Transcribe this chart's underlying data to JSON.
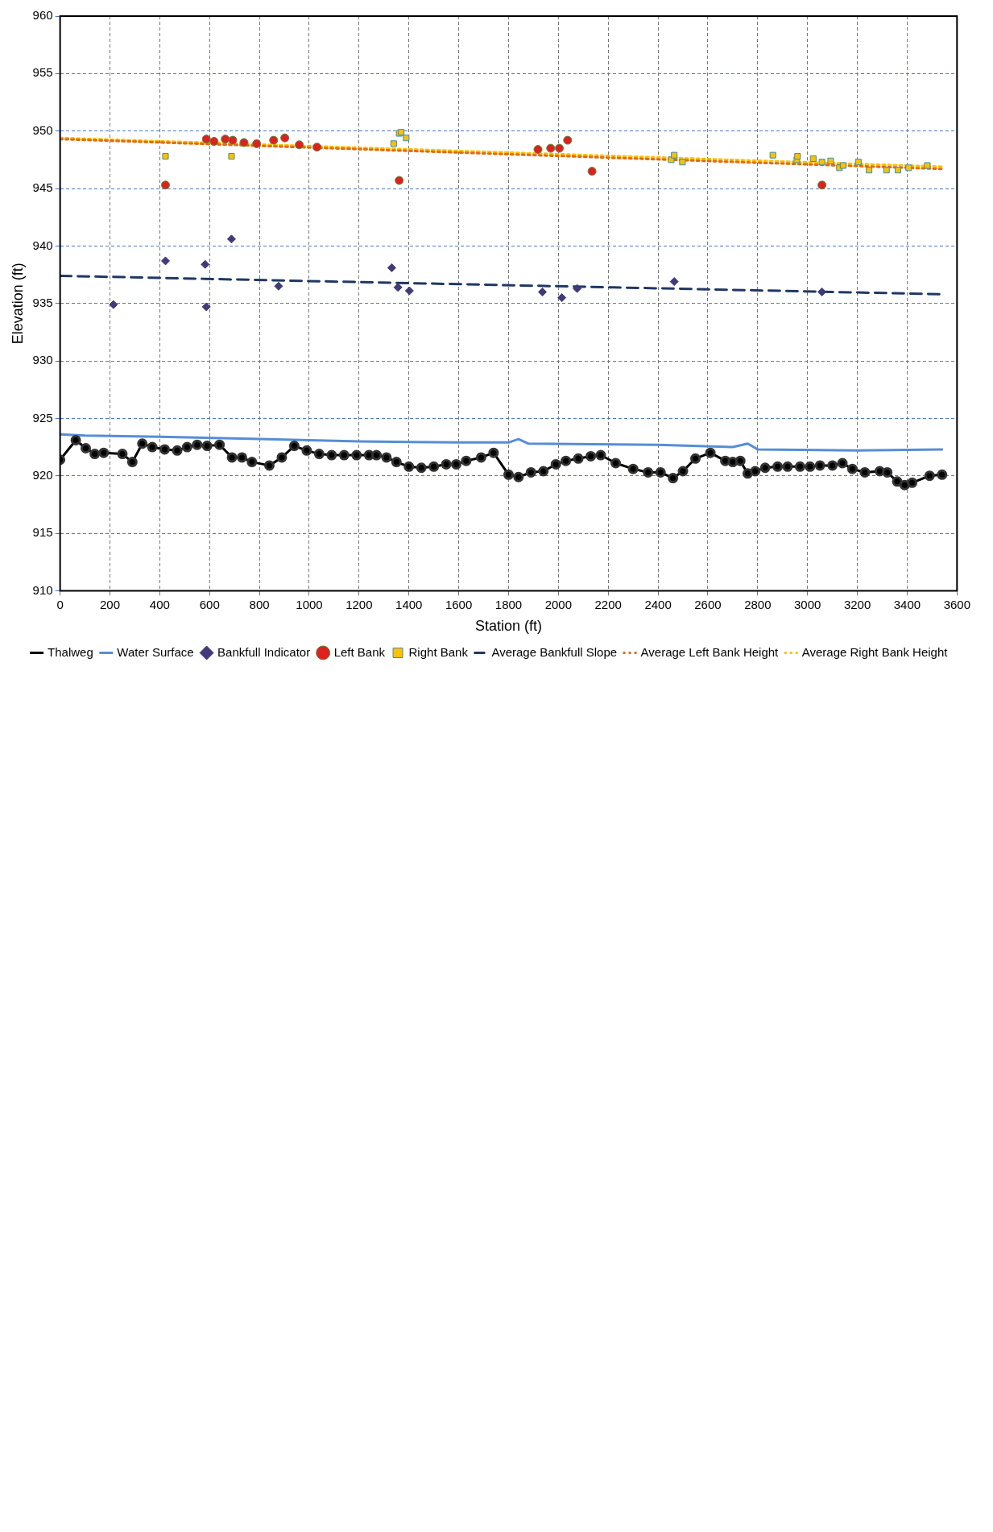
{
  "chart_data": {
    "type": "line",
    "xlabel": "Station (ft)",
    "ylabel": "Elevation (ft)",
    "xlim": [
      0,
      3600
    ],
    "xticks": [
      0,
      200,
      400,
      600,
      800,
      1000,
      1200,
      1400,
      1600,
      1800,
      2000,
      2200,
      2400,
      2600,
      2800,
      3000,
      3200,
      3400,
      3600
    ],
    "ylim": [
      910,
      960
    ],
    "yticks": [
      910,
      915,
      920,
      925,
      930,
      935,
      940,
      945,
      950,
      955,
      960
    ],
    "grid": true,
    "legend": "bottom",
    "series": [
      {
        "name": "Thalweg",
        "type": "line",
        "color": "#000000",
        "marker": "circle",
        "line_style": "solid",
        "x": [
          0,
          63,
          103,
          139,
          175,
          250,
          290,
          330,
          370,
          420,
          470,
          510,
          550,
          590,
          640,
          690,
          730,
          770,
          840,
          890,
          940,
          990,
          1040,
          1090,
          1140,
          1190,
          1240,
          1270,
          1310,
          1350,
          1400,
          1450,
          1500,
          1550,
          1590,
          1630,
          1690,
          1740,
          1800,
          1840,
          1890,
          1940,
          1990,
          2030,
          2080,
          2130,
          2170,
          2230,
          2300,
          2360,
          2410,
          2460,
          2500,
          2550,
          2610,
          2670,
          2700,
          2730,
          2760,
          2790,
          2830,
          2880,
          2920,
          2970,
          3010,
          3050,
          3100,
          3140,
          3180,
          3230,
          3290,
          3320,
          3360,
          3390,
          3420,
          3490,
          3540
        ],
        "values": [
          921.4,
          923.1,
          922.4,
          921.9,
          922.0,
          921.9,
          921.2,
          922.8,
          922.5,
          922.3,
          922.2,
          922.5,
          922.7,
          922.6,
          922.7,
          921.6,
          921.6,
          921.2,
          920.9,
          921.6,
          922.6,
          922.2,
          921.9,
          921.8,
          921.8,
          921.8,
          921.8,
          921.8,
          921.6,
          921.2,
          920.8,
          920.7,
          920.8,
          921.0,
          921.0,
          921.3,
          921.6,
          922.0,
          920.1,
          919.9,
          920.3,
          920.4,
          921.0,
          921.3,
          921.5,
          921.7,
          921.8,
          921.1,
          920.6,
          920.3,
          920.3,
          919.8,
          920.4,
          921.5,
          922.0,
          921.3,
          921.2,
          921.3,
          920.2,
          920.4,
          920.7,
          920.8,
          920.8,
          920.8,
          920.8,
          920.9,
          920.9,
          921.1,
          920.6,
          920.3,
          920.4,
          920.3,
          919.5,
          919.2,
          919.4,
          920.0,
          920.1
        ]
      },
      {
        "name": "Water Surface",
        "type": "line",
        "color": "#558ed5",
        "marker": "none",
        "line_style": "solid",
        "x": [
          0,
          100,
          400,
          800,
          1200,
          1600,
          1800,
          1840,
          1880,
          2400,
          2700,
          2760,
          2800,
          3200,
          3540
        ],
        "values": [
          923.6,
          923.5,
          923.4,
          923.2,
          923.0,
          922.9,
          922.9,
          923.2,
          922.8,
          922.7,
          922.5,
          922.8,
          922.3,
          922.2,
          922.3
        ]
      },
      {
        "name": "Bankfull Indicator",
        "type": "scatter",
        "color": "#403a7a",
        "marker": "diamond",
        "x": [
          214,
          423,
          582,
          587,
          688,
          877,
          1331,
          1356,
          1402,
          1936,
          2014,
          2075,
          2465,
          3058
        ],
        "values": [
          934.9,
          938.7,
          938.4,
          934.7,
          940.6,
          936.5,
          938.1,
          936.4,
          936.1,
          936.0,
          935.5,
          936.3,
          936.9,
          936.0
        ]
      },
      {
        "name": "Left Bank",
        "type": "scatter",
        "color": "#e02020",
        "marker": "circle",
        "x": [
          423,
          587,
          618,
          663,
          693,
          738,
          789,
          857,
          902,
          960,
          1031,
          1361,
          1918,
          1969,
          2004,
          2037,
          2135,
          3058
        ],
        "values": [
          945.3,
          949.3,
          949.1,
          949.3,
          949.2,
          949.0,
          948.9,
          949.2,
          949.4,
          948.8,
          948.6,
          945.7,
          948.4,
          948.5,
          948.5,
          949.2,
          946.5,
          945.3
        ]
      },
      {
        "name": "Right Bank",
        "type": "scatter",
        "color": "#ffc000",
        "marker": "square",
        "x": [
          423,
          688,
          1339,
          1361,
          1369,
          1389,
          2453,
          2465,
          2498,
          2861,
          2957,
          2960,
          3023,
          3058,
          3093,
          3128,
          3143,
          3204,
          3247,
          3317,
          3363,
          3406,
          3481
        ],
        "values": [
          947.8,
          947.8,
          948.9,
          949.8,
          949.9,
          949.4,
          947.5,
          947.9,
          947.3,
          947.9,
          947.5,
          947.8,
          947.6,
          947.3,
          947.4,
          946.8,
          947.0,
          947.3,
          946.6,
          946.6,
          946.6,
          946.8,
          947.0
        ]
      },
      {
        "name": "Average Bankfull Slope",
        "type": "line",
        "color": "#1f3864",
        "marker": "none",
        "line_style": "dashed",
        "x": [
          0,
          3540
        ],
        "values": [
          937.4,
          935.8
        ]
      },
      {
        "name": "Average Left Bank Height",
        "type": "line",
        "color": "#e46c0a",
        "marker": "none",
        "line_style": "dotted",
        "x": [
          0,
          3540
        ],
        "values": [
          949.3,
          946.7
        ]
      },
      {
        "name": "Average Right Bank Height",
        "type": "line",
        "color": "#ffc000",
        "marker": "none",
        "line_style": "dotted",
        "x": [
          0,
          3540
        ],
        "values": [
          949.4,
          946.9
        ]
      }
    ]
  }
}
